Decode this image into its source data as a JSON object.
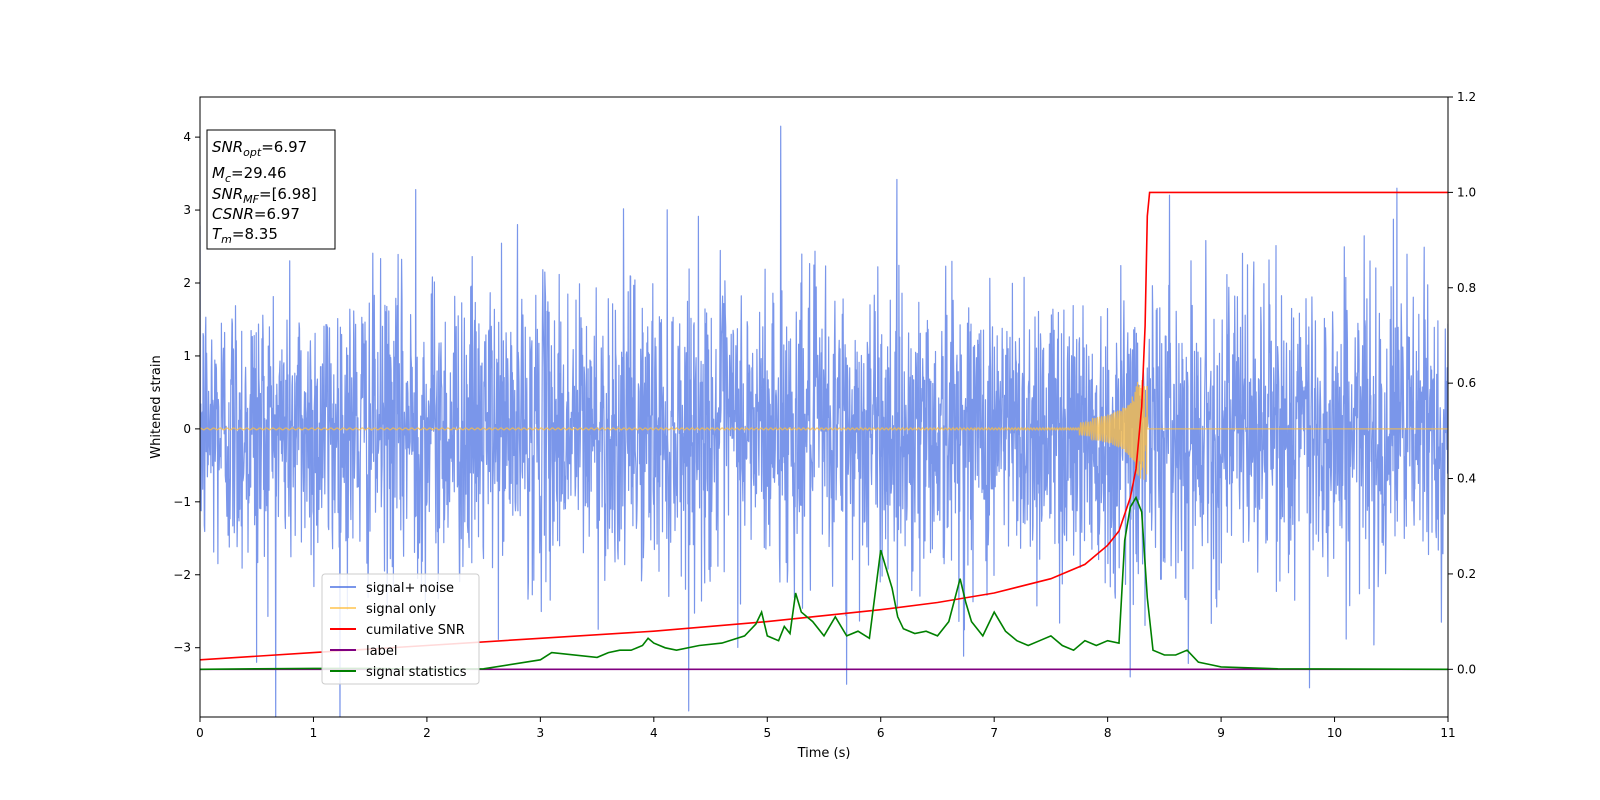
{
  "chart_data": {
    "type": "line",
    "xlabel": "Time (s)",
    "ylabel": "Whitened strain",
    "xlim": [
      0,
      11
    ],
    "ylim_left": [
      -3.95,
      4.55
    ],
    "ylim_right": [
      -0.1,
      1.2
    ],
    "x_ticks": [
      0,
      1,
      2,
      3,
      4,
      5,
      6,
      7,
      8,
      9,
      10,
      11
    ],
    "y_ticks_left": [
      -3,
      -2,
      -1,
      0,
      1,
      2,
      3,
      4
    ],
    "y_ticks_right": [
      0.0,
      0.2,
      0.4,
      0.6,
      0.8,
      1.0,
      1.2
    ],
    "grid": false,
    "legend_position": "lower-left",
    "info_box": {
      "snr_opt": {
        "main": "SNR",
        "sub": "opt",
        "value": "=6.97"
      },
      "mc": {
        "main": "M",
        "sub": "c",
        "value": "=29.46"
      },
      "snr_mf": {
        "main": "SNR",
        "sub": "MF",
        "value": "=[6.98]"
      },
      "csnr": {
        "main": "CSNR",
        "value": "=6.97"
      },
      "tm": {
        "main": "T",
        "sub": "m",
        "value": "=8.35"
      }
    },
    "series": [
      {
        "name": "signal+ noise",
        "color": "#4169e1",
        "axis": "left",
        "noise_amplitude": 1.0,
        "spikes": [
          [
            5.12,
            4.15
          ],
          [
            1.9,
            3.28
          ],
          [
            10.55,
            3.3
          ],
          [
            9.78,
            -3.55
          ],
          [
            5.7,
            -3.5
          ],
          [
            8.2,
            -3.4
          ],
          [
            0.5,
            -3.2
          ]
        ]
      },
      {
        "name": "signal only",
        "color": "#ffbf40",
        "axis": "left",
        "merger_time": 8.35
      },
      {
        "name": "cumilative SNR",
        "color": "#ff0000",
        "axis": "right",
        "x": [
          0,
          1,
          2,
          3,
          4,
          5,
          6,
          6.5,
          7,
          7.5,
          7.8,
          8.0,
          8.1,
          8.2,
          8.25,
          8.3,
          8.33,
          8.35,
          8.37,
          9,
          10,
          11
        ],
        "y": [
          0.02,
          0.035,
          0.05,
          0.065,
          0.08,
          0.1,
          0.125,
          0.14,
          0.16,
          0.19,
          0.22,
          0.26,
          0.29,
          0.36,
          0.42,
          0.55,
          0.72,
          0.95,
          1.0,
          1.0,
          1.0,
          1.0
        ]
      },
      {
        "name": "label",
        "color": "#800080",
        "axis": "right",
        "x": [
          0,
          11
        ],
        "y": [
          0.0,
          0.0
        ]
      },
      {
        "name": "signal statistics",
        "color": "#008000",
        "axis": "right",
        "x": [
          0,
          0.5,
          1,
          1.5,
          2,
          2.5,
          3,
          3.1,
          3.5,
          3.6,
          3.7,
          3.8,
          3.9,
          3.95,
          4.0,
          4.1,
          4.2,
          4.4,
          4.6,
          4.8,
          4.9,
          4.95,
          5.0,
          5.1,
          5.15,
          5.2,
          5.25,
          5.3,
          5.4,
          5.5,
          5.6,
          5.7,
          5.8,
          5.9,
          6.0,
          6.05,
          6.1,
          6.15,
          6.2,
          6.3,
          6.4,
          6.5,
          6.6,
          6.7,
          6.75,
          6.8,
          6.9,
          7.0,
          7.1,
          7.2,
          7.3,
          7.4,
          7.5,
          7.6,
          7.7,
          7.8,
          7.9,
          8.0,
          8.1,
          8.15,
          8.2,
          8.25,
          8.3,
          8.35,
          8.4,
          8.5,
          8.6,
          8.7,
          8.8,
          8.9,
          9.0,
          9.5,
          11
        ],
        "y": [
          0.0,
          0.001,
          0.002,
          0.002,
          0.0,
          0.001,
          0.02,
          0.035,
          0.025,
          0.035,
          0.04,
          0.04,
          0.05,
          0.065,
          0.055,
          0.045,
          0.04,
          0.05,
          0.055,
          0.07,
          0.095,
          0.12,
          0.07,
          0.06,
          0.09,
          0.075,
          0.16,
          0.12,
          0.1,
          0.07,
          0.11,
          0.07,
          0.08,
          0.065,
          0.25,
          0.21,
          0.17,
          0.11,
          0.085,
          0.075,
          0.08,
          0.07,
          0.1,
          0.19,
          0.14,
          0.1,
          0.07,
          0.12,
          0.08,
          0.06,
          0.05,
          0.06,
          0.07,
          0.05,
          0.04,
          0.06,
          0.05,
          0.06,
          0.055,
          0.27,
          0.34,
          0.36,
          0.33,
          0.15,
          0.04,
          0.03,
          0.03,
          0.04,
          0.015,
          0.01,
          0.005,
          0.001,
          0.0
        ]
      }
    ]
  }
}
